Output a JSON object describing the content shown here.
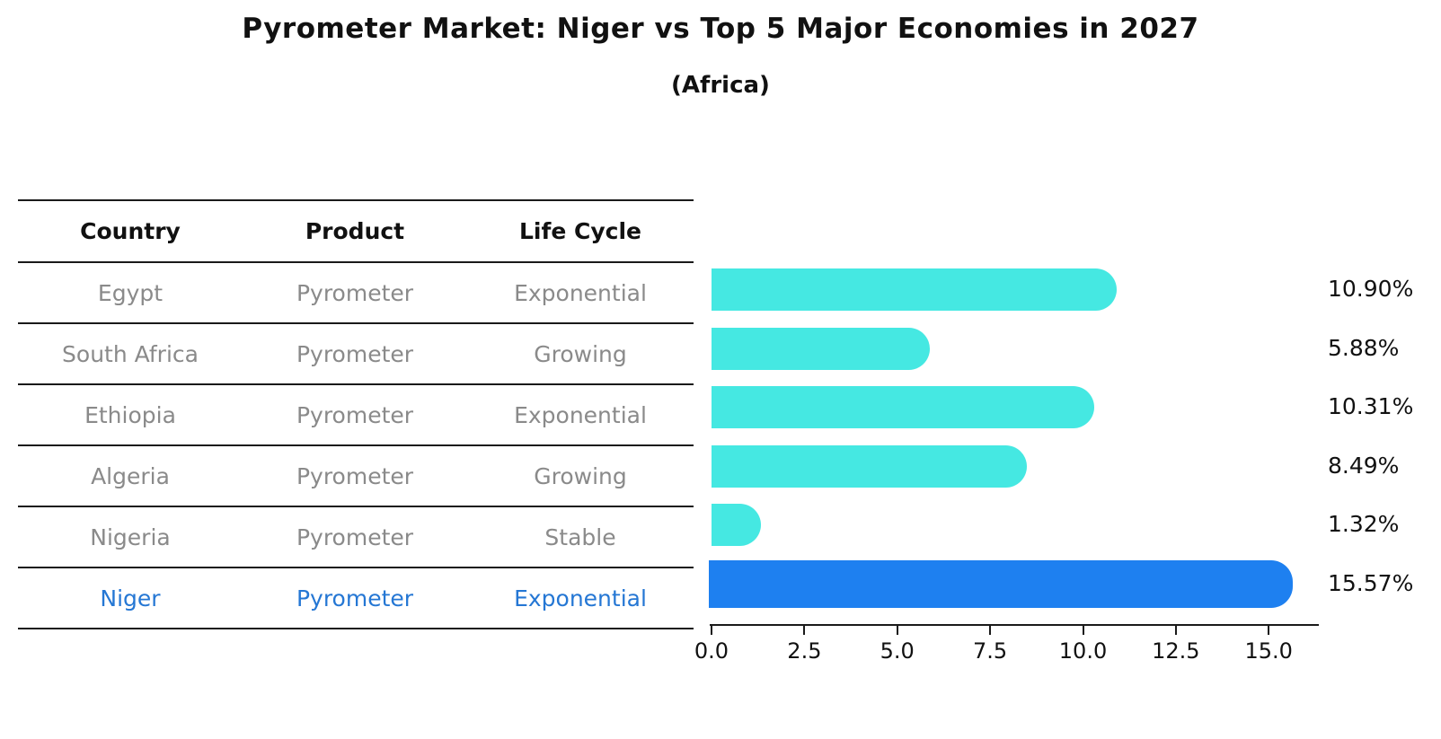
{
  "page": {
    "title": "Pyrometer Market: Niger vs Top 5 Major Economies in 2027",
    "subtitle": "(Africa)"
  },
  "table": {
    "headers": {
      "country": "Country",
      "product": "Product",
      "life_cycle": "Life Cycle"
    },
    "rows": [
      {
        "country": "Egypt",
        "product": "Pyrometer",
        "life_cycle": "Exponential",
        "highlight": false
      },
      {
        "country": "South Africa",
        "product": "Pyrometer",
        "life_cycle": "Growing",
        "highlight": false
      },
      {
        "country": "Ethiopia",
        "product": "Pyrometer",
        "life_cycle": "Exponential",
        "highlight": false
      },
      {
        "country": "Algeria",
        "product": "Pyrometer",
        "life_cycle": "Growing",
        "highlight": false
      },
      {
        "country": "Nigeria",
        "product": "Pyrometer",
        "life_cycle": "Stable",
        "highlight": false
      },
      {
        "country": "Niger",
        "product": "Pyrometer",
        "life_cycle": "Exponential",
        "highlight": true
      }
    ]
  },
  "chart_data": {
    "type": "bar",
    "orientation": "horizontal",
    "title": "Pyrometer Market: Niger vs Top 5 Major Economies in 2027",
    "subtitle": "(Africa)",
    "categories": [
      "Egypt",
      "South Africa",
      "Ethiopia",
      "Algeria",
      "Nigeria",
      "Niger"
    ],
    "values": [
      10.9,
      5.88,
      10.31,
      8.49,
      1.32,
      15.57
    ],
    "value_labels": [
      "10.90%",
      "5.88%",
      "10.31%",
      "8.49%",
      "1.32%",
      "15.57%"
    ],
    "highlight_index": 5,
    "xlim": [
      0,
      16.35
    ],
    "xticks": [
      0.0,
      2.5,
      5.0,
      7.5,
      10.0,
      12.5,
      15.0
    ],
    "xtick_labels": [
      "0.0",
      "2.5",
      "5.0",
      "7.5",
      "10.0",
      "12.5",
      "15.0"
    ],
    "grid": false,
    "legend": null
  },
  "colors": {
    "bar": "#45e8e2",
    "highlight_bar": "#1e80f0",
    "highlight_text": "#2577d4",
    "table_text": "#8a8a8a",
    "heading_text": "#111111",
    "axis": "#1a1a1a"
  }
}
